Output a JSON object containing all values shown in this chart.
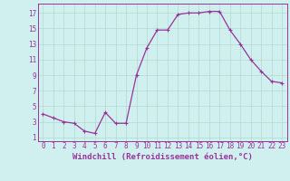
{
  "x": [
    0,
    1,
    2,
    3,
    4,
    5,
    6,
    7,
    8,
    9,
    10,
    11,
    12,
    13,
    14,
    15,
    16,
    17,
    18,
    19,
    20,
    21,
    22,
    23
  ],
  "y": [
    4.0,
    3.5,
    3.0,
    2.8,
    1.8,
    1.5,
    4.2,
    2.8,
    2.8,
    9.0,
    12.5,
    14.8,
    14.8,
    16.8,
    17.0,
    17.0,
    17.2,
    17.2,
    14.8,
    13.0,
    11.0,
    9.5,
    8.2,
    8.0
  ],
  "line_color": "#993399",
  "marker": "+",
  "marker_size": 3,
  "marker_linewidth": 0.8,
  "linewidth": 0.9,
  "background_color": "#d0f0f0",
  "grid_color": "#b0d8cc",
  "xlabel": "Windchill (Refroidissement éolien,°C)",
  "xlabel_fontsize": 6.5,
  "tick_fontsize": 5.5,
  "yticks": [
    1,
    3,
    5,
    7,
    9,
    11,
    13,
    15,
    17
  ],
  "ylim": [
    0.5,
    18.2
  ],
  "xlim": [
    -0.5,
    23.5
  ],
  "xtick_labels": [
    "0",
    "1",
    "2",
    "3",
    "4",
    "5",
    "6",
    "7",
    "8",
    "9",
    "10",
    "11",
    "12",
    "13",
    "14",
    "15",
    "16",
    "17",
    "18",
    "19",
    "20",
    "21",
    "22",
    "23"
  ]
}
